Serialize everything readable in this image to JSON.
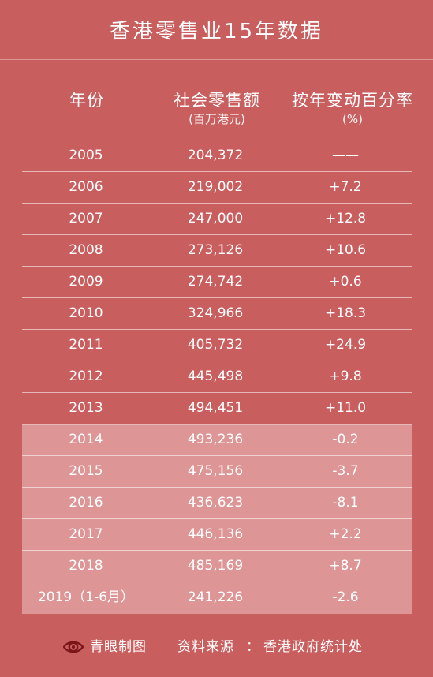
{
  "chart_data": {
    "type": "table",
    "title": "香港零售业15年数据",
    "columns": {
      "year": "年份",
      "sales": "社会零售额",
      "sales_unit": "(百万港元)",
      "pct": "按年变动百分率",
      "pct_unit": "(%)"
    },
    "rows": [
      {
        "year": "2005",
        "sales": "204,372",
        "pct": "——",
        "highlight": false
      },
      {
        "year": "2006",
        "sales": "219,002",
        "pct": "+7.2",
        "highlight": false
      },
      {
        "year": "2007",
        "sales": "247,000",
        "pct": "+12.8",
        "highlight": false
      },
      {
        "year": "2008",
        "sales": "273,126",
        "pct": "+10.6",
        "highlight": false
      },
      {
        "year": "2009",
        "sales": "274,742",
        "pct": "+0.6",
        "highlight": false
      },
      {
        "year": "2010",
        "sales": "324,966",
        "pct": "+18.3",
        "highlight": false
      },
      {
        "year": "2011",
        "sales": "405,732",
        "pct": "+24.9",
        "highlight": false
      },
      {
        "year": "2012",
        "sales": "445,498",
        "pct": "+9.8",
        "highlight": false
      },
      {
        "year": "2013",
        "sales": "494,451",
        "pct": "+11.0",
        "highlight": false
      },
      {
        "year": "2014",
        "sales": "493,236",
        "pct": "-0.2",
        "highlight": true
      },
      {
        "year": "2015",
        "sales": "475,156",
        "pct": "-3.7",
        "highlight": true
      },
      {
        "year": "2016",
        "sales": "436,623",
        "pct": "-8.1",
        "highlight": true
      },
      {
        "year": "2017",
        "sales": "446,136",
        "pct": "+2.2",
        "highlight": true
      },
      {
        "year": "2018",
        "sales": "485,169",
        "pct": "+8.7",
        "highlight": true
      },
      {
        "year": "2019（1-6月）",
        "sales": "241,226",
        "pct": "-2.6",
        "highlight": true
      }
    ]
  },
  "footer": {
    "brand": "青眼制图",
    "source_label": "资料来源",
    "source_sep": "：",
    "source_value": "香港政府统计处",
    "logo_icon": "eye-logo-icon"
  },
  "colors": {
    "background": "#c95e5f",
    "highlight_row": "#dd9596",
    "text": "#ffffff"
  }
}
